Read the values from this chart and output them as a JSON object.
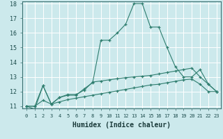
{
  "xlabel": "Humidex (Indice chaleur)",
  "x": [
    0,
    1,
    2,
    3,
    4,
    5,
    6,
    7,
    8,
    9,
    10,
    11,
    12,
    13,
    14,
    15,
    16,
    17,
    18,
    19,
    20,
    21,
    22,
    23
  ],
  "line1": [
    11.0,
    10.8,
    12.4,
    11.15,
    11.6,
    11.75,
    11.75,
    12.2,
    12.6,
    15.5,
    15.5,
    16.0,
    16.6,
    18.0,
    18.0,
    16.4,
    16.4,
    15.0,
    13.7,
    13.0,
    13.0,
    13.5,
    12.5,
    12.0
  ],
  "line2": [
    11.0,
    11.0,
    12.4,
    11.15,
    11.6,
    11.8,
    11.8,
    12.1,
    12.65,
    12.72,
    12.8,
    12.88,
    12.95,
    13.0,
    13.05,
    13.1,
    13.2,
    13.3,
    13.4,
    13.5,
    13.6,
    13.0,
    12.5,
    12.0
  ],
  "line3": [
    11.0,
    11.0,
    11.4,
    11.15,
    11.3,
    11.45,
    11.55,
    11.65,
    11.75,
    11.85,
    11.95,
    12.05,
    12.15,
    12.25,
    12.35,
    12.45,
    12.5,
    12.6,
    12.7,
    12.8,
    12.85,
    12.5,
    12.0,
    12.0
  ],
  "line_color": "#2e7d6e",
  "bg_color": "#cce9ec",
  "grid_color": "#ffffff",
  "ylim_min": 11,
  "ylim_max": 18,
  "xlim_min": 0,
  "xlim_max": 23
}
